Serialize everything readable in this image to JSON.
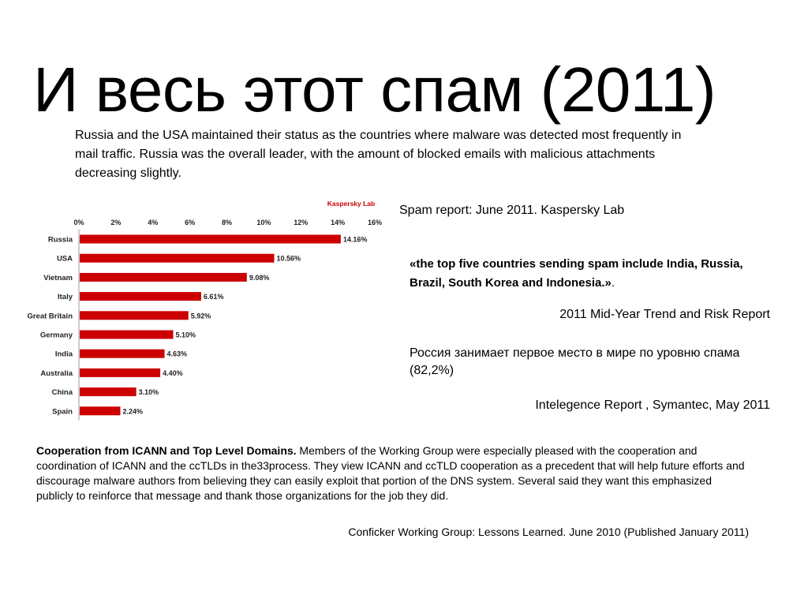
{
  "slide": {
    "title": "И весь этот спам (2011)",
    "intro": "Russia and the USA maintained their status as the countries where malware was detected most frequently in mail traffic. Russia was the overall leader, with the amount of blocked emails with malicious attachments decreasing slightly.",
    "spam_source": "Spam report: June 2011. Kaspersky Lab",
    "quote_bold": "«the top five countries sending spam include India, Russia, Brazil, South Korea and Indonesia.»",
    "quote_end": ".",
    "trend_source": "2011 Mid-Year Trend and Risk Report",
    "ru_text": "Россия занимает первое место в мире  по уровню спама (82,2%)",
    "symantec_source": "Intelegence Report , Symantec, May 2011",
    "coop_bold": "Cooperation from ICANN and Top Level Domains.",
    "coop_text": " Members of the Working Group were especially pleased with the cooperation and coordination of ICANN and the ccTLDs in the33process. They view ICANN and ccTLD cooperation as a precedent that will help future efforts and discourage malware authors from believing they can easily exploit that portion of the DNS system. Several said they want this emphasized publicly to reinforce that message and thank those organizations for the job they did.",
    "cwg_source": "Conficker Working Group: Lessons Learned. June 2010 (Published January 2011)"
  },
  "chart_data": {
    "type": "bar",
    "orientation": "horizontal",
    "brand": "Kaspersky Lab",
    "categories": [
      "Russia",
      "USA",
      "Vietnam",
      "Italy",
      "Great Britain",
      "Germany",
      "India",
      "Australia",
      "China",
      "Spain"
    ],
    "values": [
      14.16,
      10.56,
      9.08,
      6.61,
      5.92,
      5.1,
      4.63,
      4.4,
      3.1,
      2.24
    ],
    "value_labels": [
      "14.16%",
      "10.56%",
      "9.08%",
      "6.61%",
      "5.92%",
      "5.10%",
      "4.63%",
      "4.40%",
      "3.10%",
      "2.24%"
    ],
    "ticks": [
      "0%",
      "2%",
      "4%",
      "6%",
      "8%",
      "10%",
      "12%",
      "14%",
      "16%"
    ],
    "xlim": [
      0,
      16
    ],
    "axis_position": "top",
    "grid": false,
    "bar_color": "#cc0000",
    "brand_color": "#cc0000"
  }
}
